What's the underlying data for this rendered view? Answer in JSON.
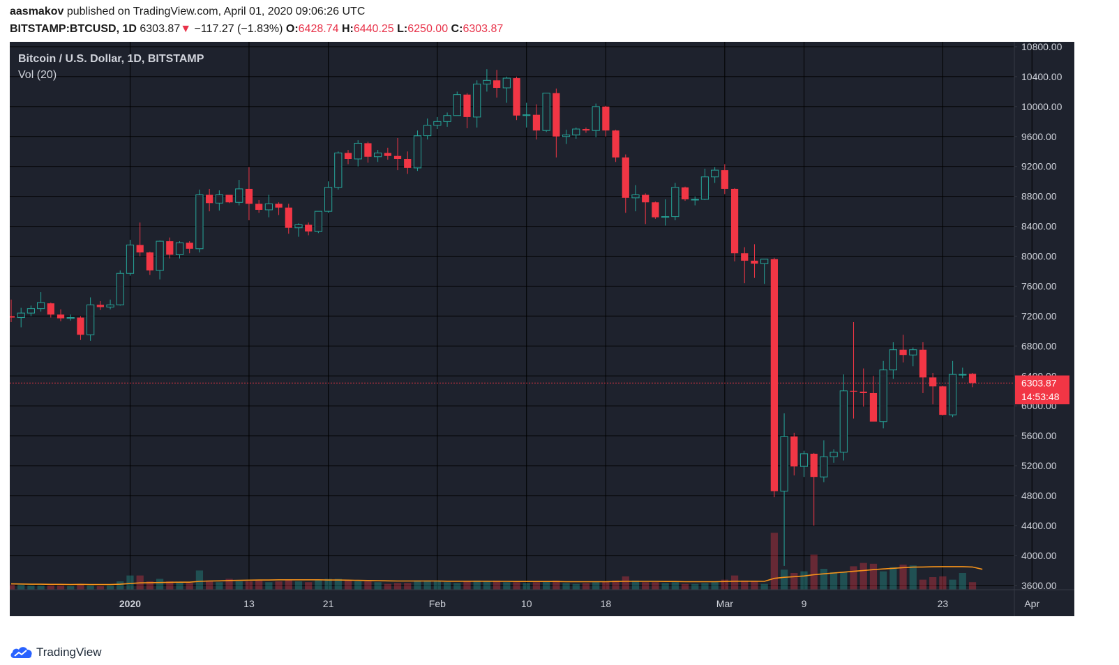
{
  "header": {
    "author": "aasmakov",
    "published_text": "published on TradingView.com, April 01, 2020 09:06:26 UTC",
    "symbol": "BITSTAMP:BTCUSD, 1D",
    "last": "6303.87",
    "down_arrow": "▼",
    "change": "−117.27 (−1.83%)",
    "o_label": "O:",
    "o_value": "6428.74",
    "h_label": "H:",
    "h_value": "6440.25",
    "l_label": "L:",
    "l_value": "6250.00",
    "c_label": "C:",
    "c_value": "6303.87"
  },
  "footer": {
    "brand": "TradingView"
  },
  "colors": {
    "background": "#1e222d",
    "grid": "#000000",
    "up": "#26a69a",
    "down": "#f23645",
    "price_line": "#f23645",
    "volume_ma": "#f7931a",
    "text": "#d1d4dc"
  },
  "chart_data": {
    "type": "candlestick",
    "title": "Bitcoin / U.S. Dollar, 1D, BITSTAMP",
    "indicator": "Vol (20)",
    "last_price_label": "6303.87",
    "countdown_label": "14:53:48",
    "y_axis": {
      "ticks": [
        "10800.00",
        "10400.00",
        "10000.00",
        "9600.00",
        "9200.00",
        "8800.00",
        "8400.00",
        "8000.00",
        "7600.00",
        "7200.00",
        "6800.00",
        "6400.00",
        "6000.00",
        "5600.00",
        "5200.00",
        "4800.00",
        "4400.00",
        "4000.00",
        "3600.00"
      ],
      "min": 3440,
      "max": 10800
    },
    "x_axis": {
      "labels": [
        {
          "text": "2020",
          "date": "2020-01-01",
          "bold": true
        },
        {
          "text": "13",
          "date": "2020-01-13"
        },
        {
          "text": "21",
          "date": "2020-01-21"
        },
        {
          "text": "Feb",
          "date": "2020-02-01"
        },
        {
          "text": "10",
          "date": "2020-02-10"
        },
        {
          "text": "18",
          "date": "2020-02-18"
        },
        {
          "text": "Mar",
          "date": "2020-03-01"
        },
        {
          "text": "9",
          "date": "2020-03-09"
        },
        {
          "text": "23",
          "date": "2020-03-23"
        },
        {
          "text": "Apr",
          "date": "2020-04-01"
        }
      ],
      "first_date": "2019-12-20",
      "last_date": "2020-04-01"
    },
    "candles": [
      {
        "o": 7200,
        "h": 7420,
        "l": 7120,
        "c": 7180
      },
      {
        "o": 7180,
        "h": 7310,
        "l": 7050,
        "c": 7240
      },
      {
        "o": 7240,
        "h": 7340,
        "l": 7200,
        "c": 7300
      },
      {
        "o": 7300,
        "h": 7520,
        "l": 7260,
        "c": 7380
      },
      {
        "o": 7370,
        "h": 7380,
        "l": 7180,
        "c": 7220
      },
      {
        "o": 7220,
        "h": 7290,
        "l": 7130,
        "c": 7170
      },
      {
        "o": 7170,
        "h": 7220,
        "l": 7140,
        "c": 7180
      },
      {
        "o": 7180,
        "h": 7200,
        "l": 6880,
        "c": 6950
      },
      {
        "o": 6950,
        "h": 7450,
        "l": 6870,
        "c": 7350
      },
      {
        "o": 7350,
        "h": 7400,
        "l": 7280,
        "c": 7320
      },
      {
        "o": 7320,
        "h": 7420,
        "l": 7290,
        "c": 7350
      },
      {
        "o": 7350,
        "h": 7810,
        "l": 7340,
        "c": 7770
      },
      {
        "o": 7770,
        "h": 8220,
        "l": 7740,
        "c": 8150
      },
      {
        "o": 8150,
        "h": 8450,
        "l": 8000,
        "c": 8050
      },
      {
        "o": 8050,
        "h": 8060,
        "l": 7750,
        "c": 7810
      },
      {
        "o": 7810,
        "h": 8210,
        "l": 7690,
        "c": 8200
      },
      {
        "o": 8200,
        "h": 8250,
        "l": 7970,
        "c": 8020
      },
      {
        "o": 8020,
        "h": 8200,
        "l": 7970,
        "c": 8180
      },
      {
        "o": 8180,
        "h": 8200,
        "l": 8040,
        "c": 8100
      },
      {
        "o": 8100,
        "h": 8890,
        "l": 8050,
        "c": 8820
      },
      {
        "o": 8820,
        "h": 8900,
        "l": 8600,
        "c": 8710
      },
      {
        "o": 8710,
        "h": 8880,
        "l": 8610,
        "c": 8820
      },
      {
        "o": 8820,
        "h": 8820,
        "l": 8710,
        "c": 8720
      },
      {
        "o": 8720,
        "h": 9020,
        "l": 8680,
        "c": 8900
      },
      {
        "o": 8900,
        "h": 9190,
        "l": 8480,
        "c": 8700
      },
      {
        "o": 8700,
        "h": 8750,
        "l": 8580,
        "c": 8620
      },
      {
        "o": 8620,
        "h": 8820,
        "l": 8520,
        "c": 8700
      },
      {
        "o": 8700,
        "h": 8720,
        "l": 8550,
        "c": 8650
      },
      {
        "o": 8650,
        "h": 8700,
        "l": 8300,
        "c": 8380
      },
      {
        "o": 8380,
        "h": 8440,
        "l": 8260,
        "c": 8420
      },
      {
        "o": 8420,
        "h": 8450,
        "l": 8280,
        "c": 8330
      },
      {
        "o": 8330,
        "h": 8600,
        "l": 8310,
        "c": 8600
      },
      {
        "o": 8600,
        "h": 9000,
        "l": 8580,
        "c": 8920
      },
      {
        "o": 8920,
        "h": 9400,
        "l": 8890,
        "c": 9380
      },
      {
        "o": 9380,
        "h": 9420,
        "l": 9230,
        "c": 9300
      },
      {
        "o": 9300,
        "h": 9550,
        "l": 9200,
        "c": 9510
      },
      {
        "o": 9510,
        "h": 9530,
        "l": 9250,
        "c": 9330
      },
      {
        "o": 9330,
        "h": 9420,
        "l": 9260,
        "c": 9380
      },
      {
        "o": 9380,
        "h": 9450,
        "l": 9290,
        "c": 9340
      },
      {
        "o": 9340,
        "h": 9580,
        "l": 9150,
        "c": 9300
      },
      {
        "o": 9300,
        "h": 9400,
        "l": 9100,
        "c": 9180
      },
      {
        "o": 9180,
        "h": 9680,
        "l": 9140,
        "c": 9610
      },
      {
        "o": 9610,
        "h": 9840,
        "l": 9560,
        "c": 9750
      },
      {
        "o": 9750,
        "h": 9860,
        "l": 9700,
        "c": 9800
      },
      {
        "o": 9800,
        "h": 9920,
        "l": 9730,
        "c": 9880
      },
      {
        "o": 9880,
        "h": 10200,
        "l": 9880,
        "c": 10160
      },
      {
        "o": 10160,
        "h": 10180,
        "l": 9710,
        "c": 9860
      },
      {
        "o": 9860,
        "h": 10350,
        "l": 9720,
        "c": 10300
      },
      {
        "o": 10300,
        "h": 10500,
        "l": 10200,
        "c": 10350
      },
      {
        "o": 10350,
        "h": 10490,
        "l": 10120,
        "c": 10250
      },
      {
        "o": 10250,
        "h": 10400,
        "l": 10050,
        "c": 10380
      },
      {
        "o": 10380,
        "h": 10400,
        "l": 9820,
        "c": 9880
      },
      {
        "o": 9880,
        "h": 10050,
        "l": 9720,
        "c": 9890
      },
      {
        "o": 9890,
        "h": 10030,
        "l": 9560,
        "c": 9680
      },
      {
        "o": 9680,
        "h": 10180,
        "l": 9660,
        "c": 10180
      },
      {
        "o": 10180,
        "h": 10240,
        "l": 9320,
        "c": 9600
      },
      {
        "o": 9600,
        "h": 9690,
        "l": 9500,
        "c": 9620
      },
      {
        "o": 9620,
        "h": 9720,
        "l": 9570,
        "c": 9700
      },
      {
        "o": 9700,
        "h": 9720,
        "l": 9650,
        "c": 9680
      },
      {
        "o": 9680,
        "h": 10040,
        "l": 9590,
        "c": 10000
      },
      {
        "o": 10000,
        "h": 10010,
        "l": 9600,
        "c": 9680
      },
      {
        "o": 9680,
        "h": 9690,
        "l": 9260,
        "c": 9320
      },
      {
        "o": 9320,
        "h": 9360,
        "l": 8580,
        "c": 8780
      },
      {
        "o": 8780,
        "h": 8950,
        "l": 8600,
        "c": 8820
      },
      {
        "o": 8820,
        "h": 8840,
        "l": 8430,
        "c": 8720
      },
      {
        "o": 8720,
        "h": 8730,
        "l": 8500,
        "c": 8520
      },
      {
        "o": 8520,
        "h": 8760,
        "l": 8410,
        "c": 8530
      },
      {
        "o": 8530,
        "h": 8980,
        "l": 8480,
        "c": 8920
      },
      {
        "o": 8920,
        "h": 8930,
        "l": 8740,
        "c": 8760
      },
      {
        "o": 8760,
        "h": 8800,
        "l": 8680,
        "c": 8760
      },
      {
        "o": 8760,
        "h": 9170,
        "l": 8750,
        "c": 9060
      },
      {
        "o": 9060,
        "h": 9190,
        "l": 8980,
        "c": 9150
      },
      {
        "o": 9150,
        "h": 9230,
        "l": 8830,
        "c": 8900
      },
      {
        "o": 8900,
        "h": 8910,
        "l": 7930,
        "c": 8040
      },
      {
        "o": 8040,
        "h": 8120,
        "l": 7640,
        "c": 7940
      },
      {
        "o": 7940,
        "h": 8160,
        "l": 7710,
        "c": 7900
      },
      {
        "o": 7900,
        "h": 7960,
        "l": 7630,
        "c": 7960
      },
      {
        "o": 7960,
        "h": 7980,
        "l": 4780,
        "c": 4860
      },
      {
        "o": 4860,
        "h": 5900,
        "l": 3860,
        "c": 5590
      },
      {
        "o": 5590,
        "h": 5640,
        "l": 5070,
        "c": 5190
      },
      {
        "o": 5190,
        "h": 5400,
        "l": 5050,
        "c": 5360
      },
      {
        "o": 5360,
        "h": 5370,
        "l": 4400,
        "c": 5050
      },
      {
        "o": 5050,
        "h": 5540,
        "l": 4980,
        "c": 5320
      },
      {
        "o": 5320,
        "h": 5420,
        "l": 5240,
        "c": 5380
      },
      {
        "o": 5380,
        "h": 6420,
        "l": 5270,
        "c": 6200
      },
      {
        "o": 6200,
        "h": 7120,
        "l": 5830,
        "c": 6190
      },
      {
        "o": 6190,
        "h": 6500,
        "l": 5990,
        "c": 6170
      },
      {
        "o": 6170,
        "h": 6400,
        "l": 5810,
        "c": 5790
      },
      {
        "o": 5790,
        "h": 6600,
        "l": 5700,
        "c": 6480
      },
      {
        "o": 6480,
        "h": 6850,
        "l": 6360,
        "c": 6750
      },
      {
        "o": 6750,
        "h": 6950,
        "l": 6580,
        "c": 6680
      },
      {
        "o": 6680,
        "h": 6780,
        "l": 6530,
        "c": 6750
      },
      {
        "o": 6750,
        "h": 6850,
        "l": 6170,
        "c": 6380
      },
      {
        "o": 6380,
        "h": 6440,
        "l": 6020,
        "c": 6260
      },
      {
        "o": 6260,
        "h": 6270,
        "l": 5870,
        "c": 5880
      },
      {
        "o": 5880,
        "h": 6600,
        "l": 5850,
        "c": 6420
      },
      {
        "o": 6420,
        "h": 6510,
        "l": 6370,
        "c": 6420
      },
      {
        "o": 6428.74,
        "h": 6440.25,
        "l": 6250,
        "c": 6303.87
      }
    ],
    "volume_relative": [
      0.3,
      0.3,
      0.25,
      0.25,
      0.25,
      0.25,
      0.22,
      0.35,
      0.25,
      0.22,
      0.25,
      0.5,
      0.85,
      0.85,
      0.5,
      0.65,
      0.5,
      0.45,
      0.4,
      1.15,
      0.55,
      0.45,
      0.65,
      0.5,
      0.5,
      0.55,
      0.45,
      0.5,
      0.6,
      0.5,
      0.45,
      0.6,
      0.65,
      0.65,
      0.55,
      0.5,
      0.5,
      0.45,
      0.35,
      0.4,
      0.4,
      0.55,
      0.55,
      0.5,
      0.45,
      0.4,
      0.5,
      0.55,
      0.5,
      0.55,
      0.45,
      0.45,
      0.4,
      0.45,
      0.5,
      0.55,
      0.4,
      0.35,
      0.4,
      0.45,
      0.5,
      0.55,
      0.8,
      0.55,
      0.45,
      0.45,
      0.4,
      0.45,
      0.35,
      0.35,
      0.4,
      0.45,
      0.6,
      0.85,
      0.55,
      0.5,
      0.35,
      3.4,
      1.2,
      1.0,
      1.1,
      2.1,
      1.25,
      1.05,
      1.05,
      1.4,
      1.6,
      1.55,
      1.1,
      1.35,
      1.5,
      1.45,
      0.6,
      0.75,
      0.8,
      0.6,
      1.0,
      0.45,
      0.25
    ],
    "volume_ma": [
      0.35,
      0.34,
      0.33,
      0.33,
      0.32,
      0.32,
      0.31,
      0.32,
      0.31,
      0.31,
      0.31,
      0.33,
      0.37,
      0.41,
      0.42,
      0.43,
      0.44,
      0.45,
      0.45,
      0.5,
      0.52,
      0.53,
      0.55,
      0.56,
      0.57,
      0.58,
      0.58,
      0.59,
      0.59,
      0.59,
      0.59,
      0.59,
      0.58,
      0.58,
      0.57,
      0.56,
      0.55,
      0.54,
      0.53,
      0.52,
      0.52,
      0.52,
      0.52,
      0.52,
      0.51,
      0.51,
      0.51,
      0.51,
      0.51,
      0.5,
      0.5,
      0.49,
      0.49,
      0.49,
      0.49,
      0.49,
      0.48,
      0.48,
      0.48,
      0.48,
      0.48,
      0.49,
      0.5,
      0.5,
      0.5,
      0.5,
      0.49,
      0.49,
      0.48,
      0.48,
      0.48,
      0.48,
      0.49,
      0.51,
      0.51,
      0.51,
      0.5,
      0.68,
      0.74,
      0.78,
      0.82,
      0.9,
      0.95,
      1.0,
      1.05,
      1.1,
      1.15,
      1.2,
      1.24,
      1.28,
      1.32,
      1.35,
      1.36,
      1.37,
      1.38,
      1.38,
      1.38,
      1.36,
      1.22
    ]
  }
}
